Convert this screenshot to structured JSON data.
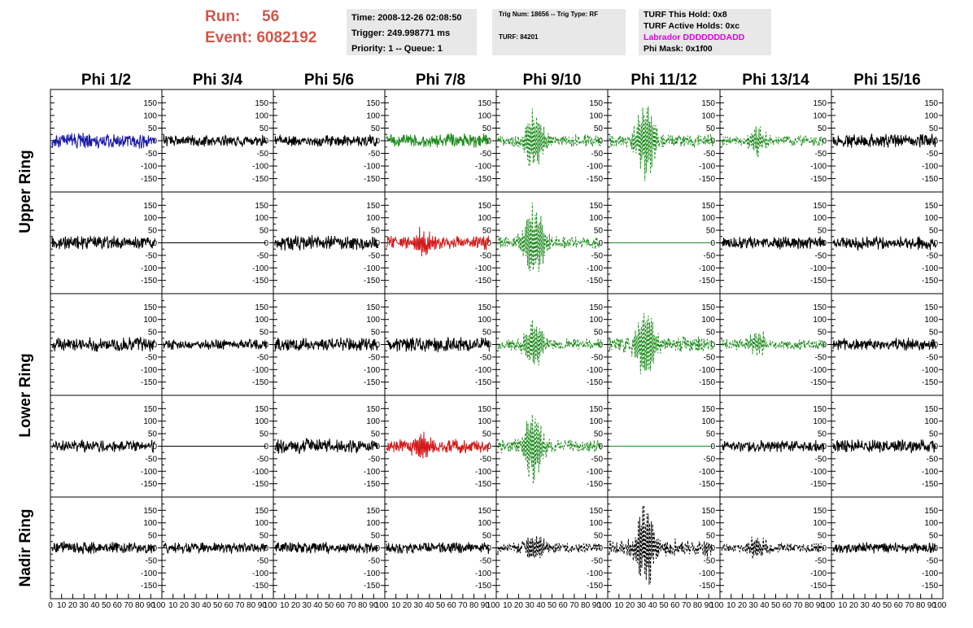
{
  "header": {
    "run_label": "Run:",
    "run_value": "56",
    "event_label": "Event:",
    "event_value": "6082192"
  },
  "info_time": {
    "time": "Time: 2008-12-26 02:08:50",
    "trigger": "Trigger: 249.998771 ms",
    "priority": "Priority: 1 -- Queue: 1"
  },
  "info_trig": {
    "trig": "Trig Num: 18656 -- Trig Type: RF",
    "turf": "TURF: 84201"
  },
  "info_turf": {
    "this_hold": "TURF This Hold: 0x8",
    "active_holds": "TURF Active Holds: 0xc",
    "labrador": "Labrador DDDDDDDADD",
    "phi_mask": "Phi Mask: 0x1f00"
  },
  "chart_data": {
    "type": "line",
    "columns": [
      "Phi 1/2",
      "Phi 3/4",
      "Phi 5/6",
      "Phi 7/8",
      "Phi 9/10",
      "Phi 11/12",
      "Phi 13/14",
      "Phi 15/16"
    ],
    "ring_labels": [
      {
        "text": "Upper Ring",
        "rows": [
          0,
          1
        ]
      },
      {
        "text": "Lower Ring",
        "rows": [
          2,
          3
        ]
      },
      {
        "text": "Nadir Ring",
        "rows": [
          4,
          4
        ]
      }
    ],
    "ylim": [
      -190,
      190
    ],
    "xlim": [
      0,
      100
    ],
    "yticks": [
      -150,
      -100,
      -50,
      0,
      50,
      100,
      150
    ],
    "xticks_first": [
      "0",
      "10",
      "20",
      "30",
      "40",
      "50",
      "60",
      "70",
      "80",
      "90",
      "100"
    ],
    "xticks_other": [
      "10",
      "20",
      "30",
      "40",
      "50",
      "60",
      "70",
      "80",
      "90",
      "100"
    ],
    "grid": false,
    "colors": {
      "black": "#000000",
      "blue": "#1a1aa6",
      "green": "#1f8c1f",
      "red": "#d21a1a"
    },
    "traces": [
      [
        {
          "color": "blue",
          "dashed": false,
          "amp": 22,
          "burst": 0,
          "flat": false
        },
        {
          "color": "black",
          "dashed": false,
          "amp": 16,
          "burst": 0,
          "flat": false
        },
        {
          "color": "black",
          "dashed": false,
          "amp": 17,
          "burst": 0,
          "flat": false
        },
        {
          "color": "green",
          "dashed": false,
          "amp": 20,
          "burst": 0,
          "flat": false
        },
        {
          "color": "green",
          "dashed": true,
          "amp": 18,
          "burst": 120,
          "flat": false
        },
        {
          "color": "green",
          "dashed": true,
          "amp": 20,
          "burst": 170,
          "flat": false
        },
        {
          "color": "green",
          "dashed": true,
          "amp": 16,
          "burst": 55,
          "flat": false
        },
        {
          "color": "black",
          "dashed": false,
          "amp": 20,
          "burst": 0,
          "flat": false
        }
      ],
      [
        {
          "color": "black",
          "dashed": false,
          "amp": 20,
          "burst": 0,
          "flat": false
        },
        {
          "color": "black",
          "dashed": false,
          "amp": 0,
          "burst": 0,
          "flat": true
        },
        {
          "color": "black",
          "dashed": false,
          "amp": 22,
          "burst": 0,
          "flat": false
        },
        {
          "color": "red",
          "dashed": false,
          "amp": 20,
          "burst": 45,
          "flat": false
        },
        {
          "color": "green",
          "dashed": true,
          "amp": 20,
          "burst": 160,
          "flat": false
        },
        {
          "color": "green",
          "dashed": false,
          "amp": 0,
          "burst": 0,
          "flat": true
        },
        {
          "color": "black",
          "dashed": false,
          "amp": 18,
          "burst": 0,
          "flat": false
        },
        {
          "color": "black",
          "dashed": false,
          "amp": 20,
          "burst": 0,
          "flat": false
        }
      ],
      [
        {
          "color": "black",
          "dashed": false,
          "amp": 22,
          "burst": 0,
          "flat": false
        },
        {
          "color": "black",
          "dashed": false,
          "amp": 16,
          "burst": 0,
          "flat": false
        },
        {
          "color": "black",
          "dashed": false,
          "amp": 20,
          "burst": 0,
          "flat": false
        },
        {
          "color": "black",
          "dashed": false,
          "amp": 22,
          "burst": 0,
          "flat": false
        },
        {
          "color": "green",
          "dashed": true,
          "amp": 18,
          "burst": 100,
          "flat": false
        },
        {
          "color": "green",
          "dashed": true,
          "amp": 25,
          "burst": 160,
          "flat": false
        },
        {
          "color": "green",
          "dashed": true,
          "amp": 16,
          "burst": 50,
          "flat": false
        },
        {
          "color": "black",
          "dashed": false,
          "amp": 18,
          "burst": 0,
          "flat": false
        }
      ],
      [
        {
          "color": "black",
          "dashed": false,
          "amp": 18,
          "burst": 0,
          "flat": false
        },
        {
          "color": "black",
          "dashed": false,
          "amp": 0,
          "burst": 0,
          "flat": true
        },
        {
          "color": "black",
          "dashed": false,
          "amp": 22,
          "burst": 0,
          "flat": false
        },
        {
          "color": "red",
          "dashed": false,
          "amp": 20,
          "burst": 50,
          "flat": false
        },
        {
          "color": "green",
          "dashed": true,
          "amp": 20,
          "burst": 150,
          "flat": false
        },
        {
          "color": "green",
          "dashed": false,
          "amp": 0,
          "burst": 0,
          "flat": true
        },
        {
          "color": "black",
          "dashed": false,
          "amp": 18,
          "burst": 0,
          "flat": false
        },
        {
          "color": "black",
          "dashed": false,
          "amp": 20,
          "burst": 0,
          "flat": false
        }
      ],
      [
        {
          "color": "black",
          "dashed": false,
          "amp": 18,
          "burst": 0,
          "flat": false
        },
        {
          "color": "black",
          "dashed": false,
          "amp": 16,
          "burst": 0,
          "flat": false
        },
        {
          "color": "black",
          "dashed": false,
          "amp": 16,
          "burst": 0,
          "flat": false
        },
        {
          "color": "black",
          "dashed": false,
          "amp": 18,
          "burst": 0,
          "flat": false
        },
        {
          "color": "black",
          "dashed": true,
          "amp": 15,
          "burst": 60,
          "flat": false
        },
        {
          "color": "black",
          "dashed": true,
          "amp": 25,
          "burst": 180,
          "flat": false
        },
        {
          "color": "black",
          "dashed": true,
          "amp": 15,
          "burst": 45,
          "flat": false
        },
        {
          "color": "black",
          "dashed": false,
          "amp": 16,
          "burst": 0,
          "flat": false
        }
      ]
    ]
  }
}
